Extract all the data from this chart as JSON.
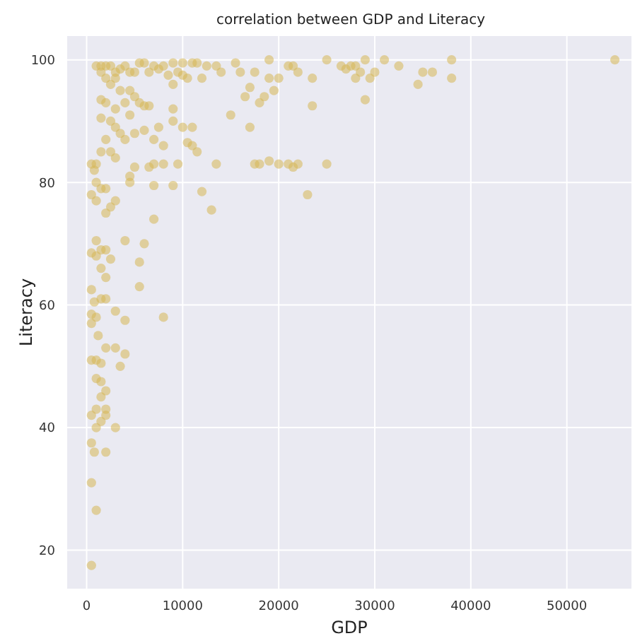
{
  "chart_data": {
    "type": "scatter",
    "title": "correlation between GDP and Literacy",
    "xlabel": "GDP",
    "ylabel": "Literacy",
    "color": "#d6b656",
    "grid": true,
    "marker": "circle",
    "xlim": [
      -2100,
      56800
    ],
    "ylim": [
      13.6,
      104
    ],
    "xticks": [
      0,
      10000,
      20000,
      30000,
      40000,
      50000
    ],
    "yticks": [
      20,
      40,
      60,
      80,
      100
    ],
    "x": [
      55000,
      38000,
      38000,
      36000,
      35000,
      34500,
      32500,
      31000,
      30000,
      29500,
      29000,
      29000,
      28500,
      28000,
      27500,
      27000,
      26500,
      28000,
      25000,
      23500,
      23500,
      22000,
      21500,
      21000,
      20000,
      19500,
      19000,
      19000,
      18500,
      18000,
      17500,
      17000,
      16500,
      16000,
      15500,
      15000,
      14000,
      13500,
      12500,
      12000,
      11500,
      11000,
      10500,
      10000,
      10000,
      9500,
      9000,
      9000,
      8500,
      8000,
      7500,
      7000,
      6500,
      6000,
      5500,
      5000,
      4500,
      4000,
      3500,
      3000,
      2500,
      2000,
      1500,
      1000,
      2000,
      1500,
      3000,
      2500,
      3500,
      4500,
      5000,
      5500,
      6000,
      6500,
      4000,
      3000,
      2000,
      1500,
      4500,
      2500,
      1500,
      3000,
      5000,
      3500,
      4000,
      2000,
      6000,
      7000,
      8000,
      7500,
      9000,
      10000,
      11000,
      11000,
      10500,
      11500,
      12000,
      13000,
      13500,
      9000,
      9500,
      8000,
      7000,
      6500,
      5000,
      4500,
      4500,
      7000,
      7000,
      2500,
      3000,
      1500,
      1000,
      500,
      800,
      1000,
      1500,
      2000,
      500,
      1000,
      3000,
      2500,
      2000,
      17000,
      17500,
      18000,
      19000,
      20000,
      21000,
      21500,
      22000,
      23000,
      25000,
      9000,
      8000,
      4000,
      6000,
      5500,
      5500,
      1000,
      1500,
      2000,
      1000,
      500,
      1500,
      2500,
      2000,
      1500,
      2000,
      500,
      800,
      3000,
      4000,
      500,
      1000,
      500,
      1200,
      2000,
      3000,
      4000,
      3500,
      500,
      1000,
      1500,
      1000,
      1500,
      2000,
      1500,
      1000,
      500,
      2000,
      1500,
      1000,
      2000,
      3000,
      500,
      800,
      2000,
      500,
      1000,
      500
    ],
    "values": [
      100,
      100,
      97,
      98,
      98,
      96,
      99,
      100,
      98,
      97,
      93.5,
      100,
      98,
      99,
      99,
      98.5,
      99,
      97,
      100,
      97,
      92.5,
      98,
      99,
      99,
      97,
      95,
      100,
      97,
      94,
      93,
      98,
      95.5,
      94,
      98,
      99.5,
      91,
      98,
      99,
      99,
      97,
      99.5,
      99.5,
      97,
      99.5,
      97.5,
      98,
      99.5,
      96,
      97.5,
      99,
      98.5,
      99,
      98,
      99.5,
      99.5,
      98,
      98,
      99,
      98.5,
      98,
      99,
      99,
      99,
      99,
      97,
      98,
      97,
      96,
      95,
      95,
      94,
      93,
      92.5,
      92.5,
      93,
      92,
      93,
      93.5,
      91,
      90,
      90.5,
      89,
      88,
      88,
      87,
      87,
      88.5,
      87,
      86,
      89,
      90,
      89,
      89,
      86,
      86.5,
      85,
      78.5,
      75.5,
      83,
      92,
      83,
      83,
      83,
      82.5,
      82.5,
      81,
      80,
      79.5,
      74,
      85,
      84,
      85,
      83,
      83,
      82,
      80,
      79,
      79,
      78,
      77,
      77,
      76,
      75,
      89,
      83,
      83,
      83.5,
      83,
      83,
      82.5,
      83,
      78,
      83,
      79.5,
      58,
      70.5,
      70,
      67,
      63,
      70.5,
      69,
      69,
      68,
      68.5,
      66,
      67.5,
      64.5,
      61,
      61,
      62.5,
      60.5,
      59,
      57.5,
      58.5,
      58,
      57,
      55,
      53,
      53,
      52,
      50,
      51,
      51,
      50.5,
      48,
      47.5,
      46,
      45,
      43,
      42,
      43,
      41,
      40,
      42,
      40,
      37.5,
      36,
      36,
      31,
      26.5,
      17.5
    ]
  }
}
